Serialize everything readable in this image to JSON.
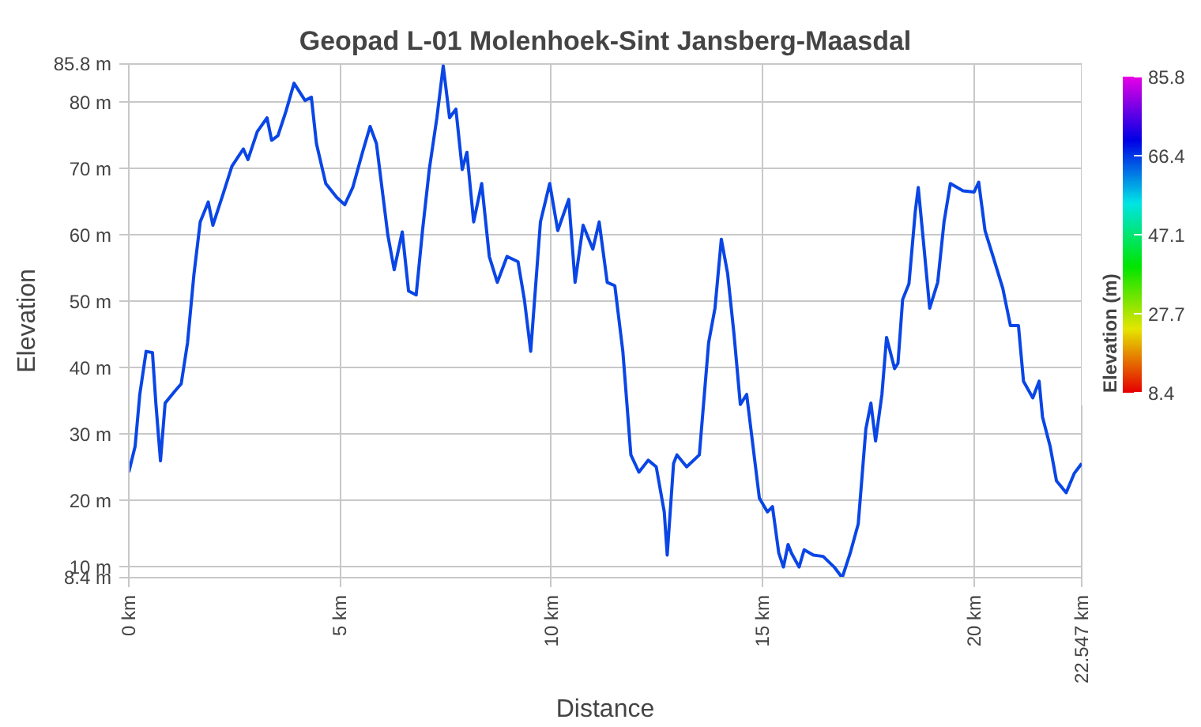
{
  "chart_data": {
    "type": "line",
    "title": "Geopad L-01 Molenhoek-Sint Jansberg-Maasdal",
    "xlabel": "Distance",
    "ylabel": "Elevation",
    "clabel": "Elevation (m)",
    "clim": [
      8.4,
      85.8
    ],
    "cticks": [
      85.8,
      66.4,
      47.1,
      27.7,
      8.4
    ],
    "xlim": [
      0,
      22.547
    ],
    "xticks": [
      {
        "value": 0,
        "label": "0 km"
      },
      {
        "value": 5,
        "label": "5 km"
      },
      {
        "value": 10,
        "label": "10 km"
      },
      {
        "value": 15,
        "label": "15 km"
      },
      {
        "value": 20,
        "label": "20 km"
      },
      {
        "value": 22.547,
        "label": "22.547 km"
      }
    ],
    "ylim": [
      8.4,
      85.8
    ],
    "yticks": [
      {
        "value": 8.4,
        "label": "8.4 m"
      },
      {
        "value": 10,
        "label": "10 m"
      },
      {
        "value": 20,
        "label": "20 m"
      },
      {
        "value": 30,
        "label": "30 m"
      },
      {
        "value": 40,
        "label": "40 m"
      },
      {
        "value": 50,
        "label": "50 m"
      },
      {
        "value": 60,
        "label": "60 m"
      },
      {
        "value": 70,
        "label": "70 m"
      },
      {
        "value": 80,
        "label": "80 m"
      },
      {
        "value": 85.8,
        "label": "85.8 m"
      }
    ],
    "grid": true,
    "x": [
      0,
      0.15,
      0.26,
      0.41,
      0.56,
      0.64,
      0.75,
      0.86,
      1.09,
      1.24,
      1.39,
      1.54,
      1.69,
      1.88,
      1.99,
      2.22,
      2.44,
      2.71,
      2.82,
      3.04,
      3.27,
      3.38,
      3.53,
      3.72,
      3.91,
      4.17,
      4.32,
      4.44,
      4.66,
      4.92,
      5.11,
      5.3,
      5.53,
      5.71,
      5.86,
      6.13,
      6.28,
      6.47,
      6.62,
      6.8,
      6.95,
      7.11,
      7.29,
      7.44,
      7.59,
      7.74,
      7.89,
      8.0,
      8.16,
      8.35,
      8.53,
      8.72,
      8.95,
      9.21,
      9.36,
      9.51,
      9.74,
      9.96,
      10.15,
      10.41,
      10.56,
      10.75,
      10.98,
      11.13,
      11.32,
      11.5,
      11.69,
      11.88,
      12.07,
      12.29,
      12.48,
      12.67,
      12.74,
      12.89,
      12.97,
      13.2,
      13.5,
      13.72,
      13.87,
      14.02,
      14.17,
      14.32,
      14.47,
      14.62,
      14.77,
      14.92,
      15.11,
      15.23,
      15.38,
      15.49,
      15.6,
      15.68,
      15.86,
      15.98,
      16.2,
      16.43,
      16.69,
      16.88,
      17.07,
      17.26,
      17.44,
      17.56,
      17.67,
      17.82,
      17.93,
      18.12,
      18.2,
      18.31,
      18.46,
      18.61,
      18.68,
      18.8,
      18.95,
      19.14,
      19.29,
      19.44,
      19.74,
      20.0,
      20.11,
      20.26,
      20.45,
      20.68,
      20.86,
      21.05,
      21.17,
      21.39,
      21.54,
      21.62,
      21.8,
      21.95,
      22.18,
      22.37,
      22.547
    ],
    "series": [
      {
        "color": "#0a46e6",
        "values": [
          24.3,
          28.2,
          36,
          42.5,
          42.3,
          34.7,
          26,
          34.7,
          36.5,
          37.6,
          43.8,
          54,
          62,
          65,
          61.5,
          66,
          70.4,
          73,
          71.4,
          75.6,
          77.7,
          74.3,
          75,
          78.7,
          82.9,
          80.3,
          80.8,
          73.8,
          67.8,
          65.7,
          64.6,
          67.2,
          72.5,
          76.4,
          73.8,
          60,
          54.8,
          60.5,
          51.6,
          51,
          60.7,
          69.9,
          77.7,
          85.5,
          77.7,
          79,
          69.9,
          72.5,
          62,
          67.8,
          56.8,
          52.9,
          56.8,
          56,
          50.3,
          42.5,
          62,
          67.8,
          60.7,
          65.4,
          52.9,
          61.5,
          57.9,
          62,
          52.9,
          52.4,
          42.5,
          26.9,
          24.3,
          26.1,
          25.1,
          18.3,
          11.8,
          25.6,
          26.9,
          25.1,
          26.9,
          43.8,
          49,
          59.4,
          54.2,
          45.1,
          34.5,
          36,
          28.2,
          20.4,
          18.3,
          19.1,
          12.1,
          10,
          13.4,
          12.1,
          10,
          12.6,
          11.8,
          11.6,
          10,
          8.4,
          12.1,
          16.5,
          30.8,
          34.7,
          29,
          36,
          44.6,
          39.9,
          40.7,
          50.3,
          52.7,
          63.6,
          67.2,
          59.2,
          49,
          52.9,
          62,
          67.8,
          66.7,
          66.5,
          68,
          60.7,
          56.8,
          52,
          46.4,
          46.4,
          38,
          35.5,
          38,
          32.6,
          28.2,
          23,
          21.2,
          24.1,
          25.6
        ]
      }
    ]
  }
}
